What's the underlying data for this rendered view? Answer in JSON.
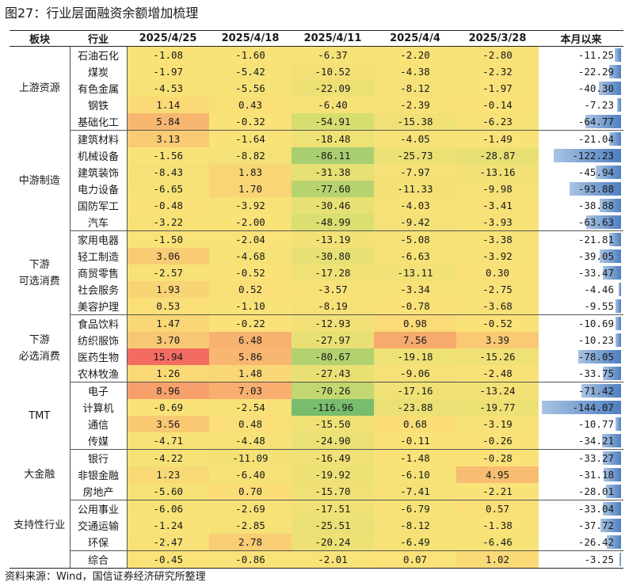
{
  "title": "图27：行业层面融资余额增加梳理",
  "source": "资料来源：Wind，国信证券经济研究所整理",
  "headers": [
    "板块",
    "行业",
    "2025/4/25",
    "2025/4/18",
    "2025/4/11",
    "2025/4/4",
    "2025/3/28",
    "本月以来"
  ],
  "groups": [
    {
      "name": "上游资源",
      "rows": [
        {
          "industry": "石油石化",
          "values": [
            "-1.08",
            "-1.60",
            "-6.37",
            "-2.20",
            "-2.80"
          ],
          "month": "-11.25"
        },
        {
          "industry": "煤炭",
          "values": [
            "-1.97",
            "-5.42",
            "-10.52",
            "-4.38",
            "-2.32"
          ],
          "month": "-22.29"
        },
        {
          "industry": "有色金属",
          "values": [
            "-4.53",
            "-5.56",
            "-22.09",
            "-8.12",
            "-1.97"
          ],
          "month": "-40.30"
        },
        {
          "industry": "钢铁",
          "values": [
            "1.14",
            "0.43",
            "-6.40",
            "-2.39",
            "-0.14"
          ],
          "month": "-7.23"
        },
        {
          "industry": "基础化工",
          "values": [
            "5.84",
            "-0.32",
            "-54.91",
            "-15.38",
            "-6.23"
          ],
          "month": "-64.77"
        }
      ]
    },
    {
      "name": "中游制造",
      "rows": [
        {
          "industry": "建筑材料",
          "values": [
            "3.13",
            "-1.64",
            "-18.48",
            "-4.05",
            "-1.49"
          ],
          "month": "-21.04"
        },
        {
          "industry": "机械设备",
          "values": [
            "-1.56",
            "-8.82",
            "-86.11",
            "-25.73",
            "-28.87"
          ],
          "month": "-122.23"
        },
        {
          "industry": "建筑装饰",
          "values": [
            "-8.43",
            "1.83",
            "-31.38",
            "-7.97",
            "-13.16"
          ],
          "month": "-45.94"
        },
        {
          "industry": "电力设备",
          "values": [
            "-6.65",
            "1.70",
            "-77.60",
            "-11.33",
            "-9.98"
          ],
          "month": "-93.88"
        },
        {
          "industry": "国防军工",
          "values": [
            "-0.48",
            "-3.92",
            "-30.46",
            "-4.03",
            "-3.41"
          ],
          "month": "-38.88"
        },
        {
          "industry": "汽车",
          "values": [
            "-3.22",
            "-2.00",
            "-48.99",
            "-9.42",
            "-3.93"
          ],
          "month": "-63.63"
        }
      ]
    },
    {
      "name": "下游\n可选消费",
      "rows": [
        {
          "industry": "家用电器",
          "values": [
            "-1.50",
            "-2.04",
            "-13.19",
            "-5.08",
            "-3.38"
          ],
          "month": "-21.81"
        },
        {
          "industry": "轻工制造",
          "values": [
            "3.06",
            "-4.68",
            "-30.80",
            "-6.63",
            "-3.92"
          ],
          "month": "-39.05"
        },
        {
          "industry": "商贸零售",
          "values": [
            "-2.57",
            "-0.52",
            "-17.28",
            "-13.11",
            "0.30"
          ],
          "month": "-33.47"
        },
        {
          "industry": "社会服务",
          "values": [
            "1.93",
            "0.52",
            "-3.57",
            "-3.34",
            "-2.75"
          ],
          "month": "-4.46"
        },
        {
          "industry": "美容护理",
          "values": [
            "0.53",
            "-1.10",
            "-8.19",
            "-0.78",
            "-3.68"
          ],
          "month": "-9.55"
        }
      ]
    },
    {
      "name": "下游\n必选消费",
      "rows": [
        {
          "industry": "食品饮料",
          "values": [
            "1.47",
            "-0.22",
            "-12.93",
            "0.98",
            "-0.52"
          ],
          "month": "-10.69"
        },
        {
          "industry": "纺织服饰",
          "values": [
            "3.70",
            "6.48",
            "-27.97",
            "7.56",
            "3.39"
          ],
          "month": "-10.23"
        },
        {
          "industry": "医药生物",
          "values": [
            "15.94",
            "5.86",
            "-80.67",
            "-19.18",
            "-15.26"
          ],
          "month": "-78.05"
        },
        {
          "industry": "农林牧渔",
          "values": [
            "1.26",
            "1.48",
            "-27.43",
            "-9.06",
            "-2.48"
          ],
          "month": "-33.75"
        }
      ]
    },
    {
      "name": "TMT",
      "rows": [
        {
          "industry": "电子",
          "values": [
            "8.96",
            "7.03",
            "-70.26",
            "-17.16",
            "-13.24"
          ],
          "month": "-71.42"
        },
        {
          "industry": "计算机",
          "values": [
            "-0.69",
            "-2.54",
            "-116.96",
            "-23.88",
            "-19.77"
          ],
          "month": "-144.07"
        },
        {
          "industry": "通信",
          "values": [
            "3.56",
            "0.48",
            "-15.50",
            "0.68",
            "-3.19"
          ],
          "month": "-10.77"
        },
        {
          "industry": "传媒",
          "values": [
            "-4.71",
            "-4.48",
            "-24.90",
            "-0.11",
            "-0.26"
          ],
          "month": "-34.21"
        }
      ]
    },
    {
      "name": "大金融",
      "rows": [
        {
          "industry": "银行",
          "values": [
            "-4.22",
            "-11.09",
            "-16.49",
            "-1.48",
            "-0.28"
          ],
          "month": "-33.27"
        },
        {
          "industry": "非银金融",
          "values": [
            "1.23",
            "-6.40",
            "-19.92",
            "-6.10",
            "4.95"
          ],
          "month": "-31.18"
        },
        {
          "industry": "房地产",
          "values": [
            "-5.60",
            "0.70",
            "-15.70",
            "-7.41",
            "-2.21"
          ],
          "month": "-28.01"
        }
      ]
    },
    {
      "name": "支持性行业",
      "rows": [
        {
          "industry": "公用事业",
          "values": [
            "-6.06",
            "-2.69",
            "-17.51",
            "-6.79",
            "0.57"
          ],
          "month": "-33.04"
        },
        {
          "industry": "交通运输",
          "values": [
            "-1.24",
            "-2.85",
            "-25.51",
            "-8.12",
            "-1.38"
          ],
          "month": "-37.72"
        },
        {
          "industry": "环保",
          "values": [
            "-2.47",
            "2.78",
            "-20.24",
            "-6.49",
            "-6.46"
          ],
          "month": "-26.42"
        }
      ]
    },
    {
      "name": "",
      "rows": [
        {
          "industry": "综合",
          "values": [
            "-0.45",
            "-0.86",
            "-2.01",
            "0.07",
            "1.02"
          ],
          "month": "-3.25"
        }
      ]
    }
  ]
}
